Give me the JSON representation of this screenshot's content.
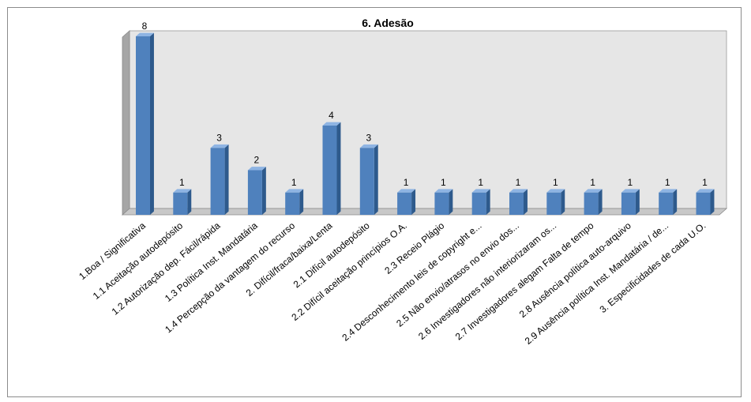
{
  "chart_data": {
    "type": "bar",
    "title": "6. Adesão",
    "xlabel": "",
    "ylabel": "",
    "ylim": [
      0,
      8
    ],
    "grid": false,
    "legend": "none",
    "style": "3d-columns",
    "categories": [
      "1.Boa / Significativa",
      "1.1 Aceitação autodepósito",
      "1.2 Autorização dep. Fácil/rápida",
      "1.3 Política Inst. Mandatária",
      "1.4 Percepção da vantagem do recurso",
      "2. Difícil/fraca/baixa/Lenta",
      "2.1 Difícil autodepósito",
      "2.2 Difícil aceitação princípios O.A.",
      "2.3 Receio Plágio",
      "2.4 Desconhecimento leis de copyright e...",
      "2.5 Não envio/atrasos no envio dos...",
      "2.6 Investigadores não interiorizaram os...",
      "2.7 Investigadores alegam Falta de tempo",
      "2.8 Ausência política auto-arquivo",
      "2.9 Ausência política Inst. Mandatária / de...",
      "3. Especificidades de cada U.O."
    ],
    "values": [
      8,
      1,
      3,
      2,
      1,
      4,
      3,
      1,
      1,
      1,
      1,
      1,
      1,
      1,
      1,
      1
    ]
  },
  "colors": {
    "bar_front": "#4f81bd",
    "bar_side": "#2e5a8c",
    "bar_top": "#8eb4e3",
    "back_wall": "#e6e6e6",
    "left_wall": "#a6a6a6",
    "floor": "#c8c8c8",
    "frame_border": "#8c8c8c"
  }
}
